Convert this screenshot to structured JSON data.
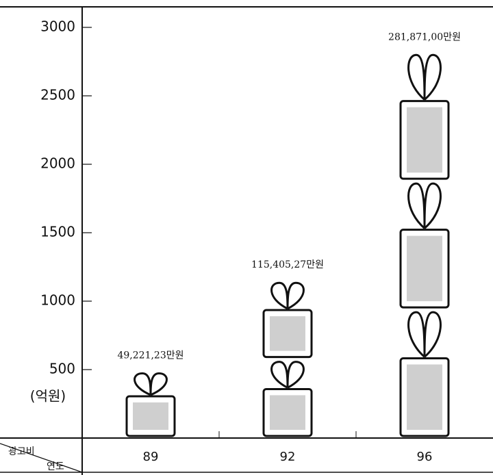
{
  "chart_data": {
    "type": "pictogram",
    "y_label": "(억원)",
    "corner_top": "광고비",
    "corner_bottom": "연도",
    "categories": [
      "89",
      "92",
      "96"
    ],
    "values": [
      492.2123,
      1154.0527,
      2818.71
    ],
    "value_labels": [
      "49,221,23만원",
      "115,405,27만원",
      "281,871,00만원"
    ],
    "ylim": [
      0,
      3150
    ],
    "yticks": [
      500,
      1000,
      1500,
      2000,
      2500,
      3000
    ]
  }
}
